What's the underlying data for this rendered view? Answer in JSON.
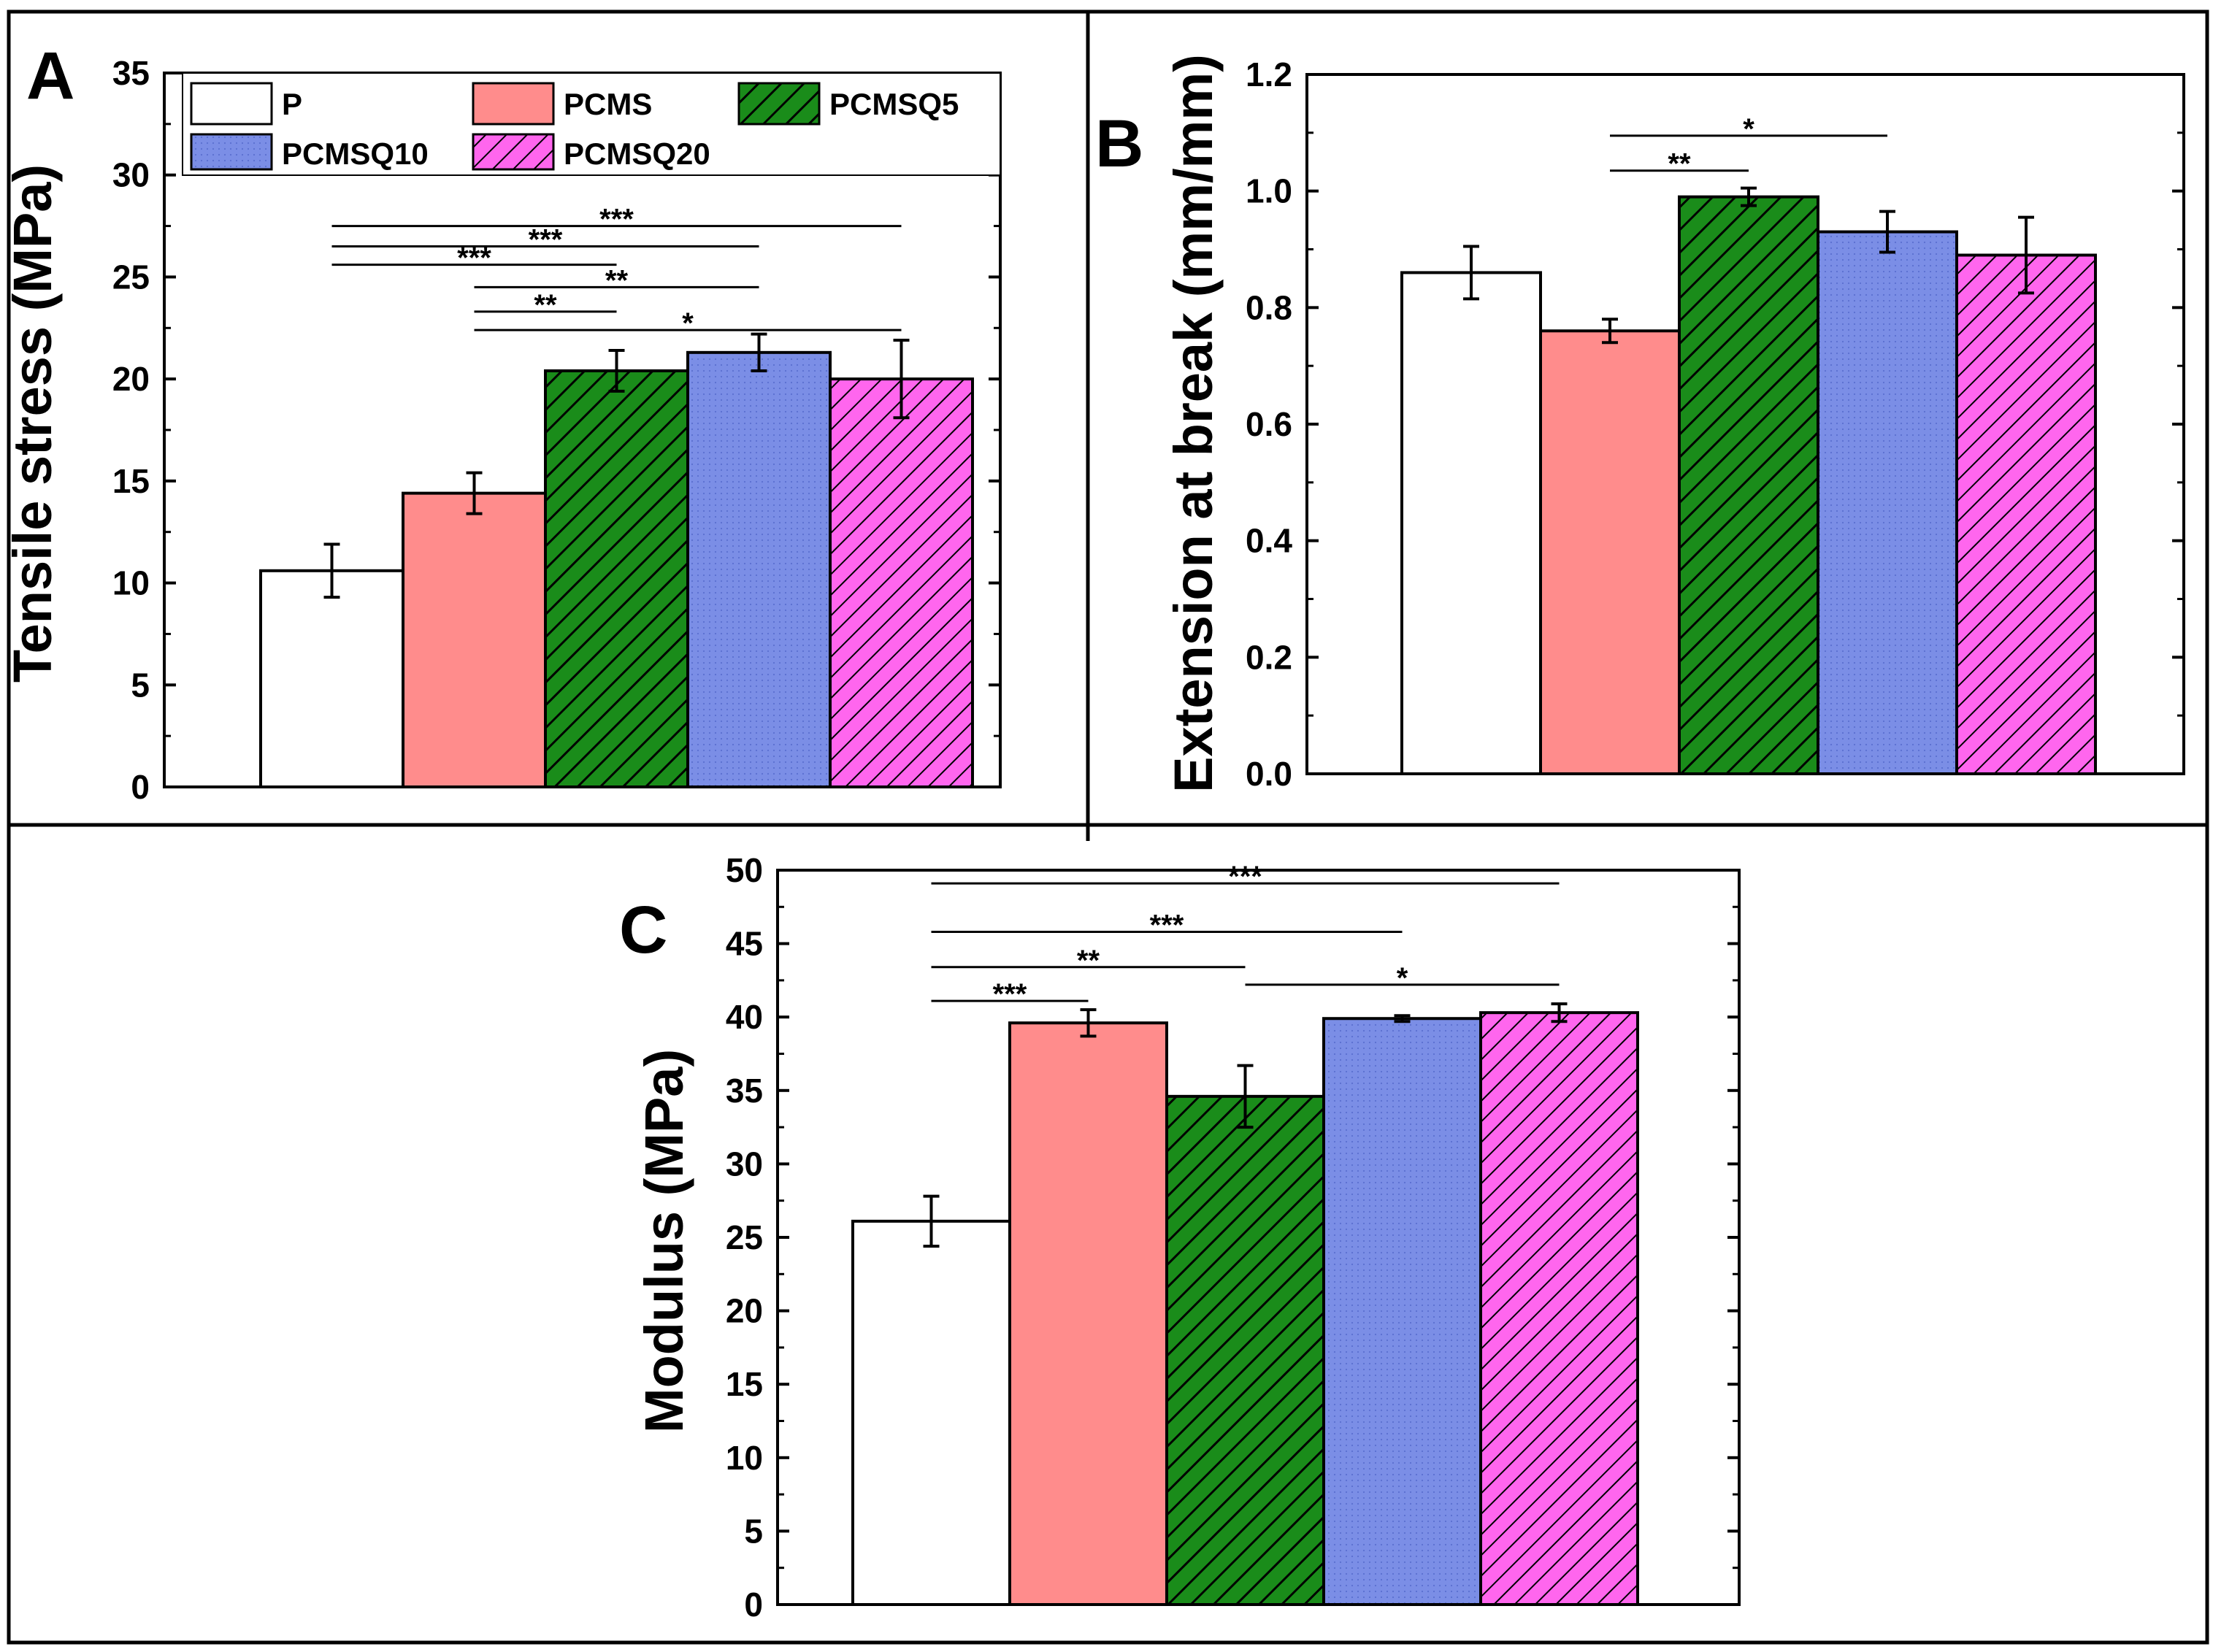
{
  "figure": {
    "bar_colors": {
      "P": "#ffffff",
      "PCMS": "#ff8c8c",
      "PCMSQ5": "#1a8c1a",
      "PCMSQ10": "#7b8ee6",
      "PCMSQ20": "#ff66ee"
    },
    "bar_patterns": {
      "P": "none",
      "PCMS": "none",
      "PCMSQ5": "hatch-black",
      "PCMSQ10": "dots",
      "PCMSQ20": "hatch-black"
    }
  },
  "chart_data": [
    {
      "panel": "A",
      "type": "bar",
      "title": "",
      "xlabel": "",
      "ylabel": "Tensile stress (MPa)",
      "ylim": [
        0,
        35
      ],
      "yticks": [
        0,
        5,
        10,
        15,
        20,
        25,
        30,
        35
      ],
      "categories": [
        "P",
        "PCMS",
        "PCMSQ5",
        "PCMSQ10",
        "PCMSQ20"
      ],
      "values": [
        10.6,
        14.4,
        20.4,
        21.3,
        20.0
      ],
      "errors": [
        1.3,
        1.0,
        1.0,
        0.9,
        1.9
      ],
      "legend": {
        "placement": "top",
        "entries": [
          "P",
          "PCMS",
          "PCMSQ5",
          "PCMSQ10",
          "PCMSQ20"
        ]
      },
      "significance": [
        {
          "from": 0,
          "to": 4,
          "label": "***",
          "y": 27.5
        },
        {
          "from": 0,
          "to": 3,
          "label": "***",
          "y": 26.5
        },
        {
          "from": 0,
          "to": 2,
          "label": "***",
          "y": 25.6
        },
        {
          "from": 1,
          "to": 3,
          "label": "**",
          "y": 24.5
        },
        {
          "from": 1,
          "to": 2,
          "label": "**",
          "y": 23.3
        },
        {
          "from": 1,
          "to": 4,
          "label": "*",
          "y": 22.4
        }
      ]
    },
    {
      "panel": "B",
      "type": "bar",
      "title": "",
      "xlabel": "",
      "ylabel": "Extension at break (mm/mm)",
      "ylim": [
        0,
        1.2
      ],
      "yticks": [
        0.0,
        0.2,
        0.4,
        0.6,
        0.8,
        1.0,
        1.2
      ],
      "ytick_labels": [
        "0.0",
        "0.2",
        "0.4",
        "0.6",
        "0.8",
        "1.0",
        "1.2"
      ],
      "categories": [
        "P",
        "PCMS",
        "PCMSQ5",
        "PCMSQ10",
        "PCMSQ20"
      ],
      "values": [
        0.86,
        0.76,
        0.99,
        0.93,
        0.89
      ],
      "errors": [
        0.045,
        0.02,
        0.015,
        0.035,
        0.065
      ],
      "significance": [
        {
          "from": 1,
          "to": 3,
          "label": "*",
          "y": 1.095
        },
        {
          "from": 1,
          "to": 2,
          "label": "**",
          "y": 1.035
        }
      ]
    },
    {
      "panel": "C",
      "type": "bar",
      "title": "",
      "xlabel": "",
      "ylabel": "Modulus (MPa)",
      "ylim": [
        0,
        50
      ],
      "yticks": [
        0,
        5,
        10,
        15,
        20,
        25,
        30,
        35,
        40,
        45,
        50
      ],
      "categories": [
        "P",
        "PCMS",
        "PCMSQ5",
        "PCMSQ10",
        "PCMSQ20"
      ],
      "values": [
        26.1,
        39.6,
        34.6,
        39.9,
        40.3
      ],
      "errors": [
        1.7,
        0.9,
        2.1,
        0.2,
        0.6
      ],
      "significance": [
        {
          "from": 0,
          "to": 4,
          "label": "***",
          "y": 49.1
        },
        {
          "from": 0,
          "to": 3,
          "label": "***",
          "y": 45.8
        },
        {
          "from": 0,
          "to": 2,
          "label": "**",
          "y": 43.4
        },
        {
          "from": 0,
          "to": 1,
          "label": "***",
          "y": 41.1
        },
        {
          "from": 2,
          "to": 4,
          "label": "*",
          "y": 42.2
        }
      ]
    }
  ]
}
